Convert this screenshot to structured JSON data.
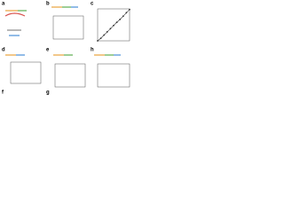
{
  "panels": [
    {
      "label": "a"
    },
    {
      "label": "b"
    },
    {
      "label": "c"
    },
    {
      "label": "d"
    },
    {
      "label": "e"
    },
    {
      "label": "f"
    },
    {
      "label": "g"
    },
    {
      "label": "h"
    }
  ],
  "chart_data": {
    "type": "line",
    "x": [
      0,
      10,
      20,
      30,
      40,
      50,
      60,
      70,
      80,
      90,
      100
    ],
    "values": [
      0,
      8,
      18,
      28,
      38,
      48,
      58,
      67,
      77,
      88,
      98
    ],
    "color": "#333333",
    "xlim": [
      0,
      100
    ],
    "ylim": [
      0,
      100
    ]
  }
}
